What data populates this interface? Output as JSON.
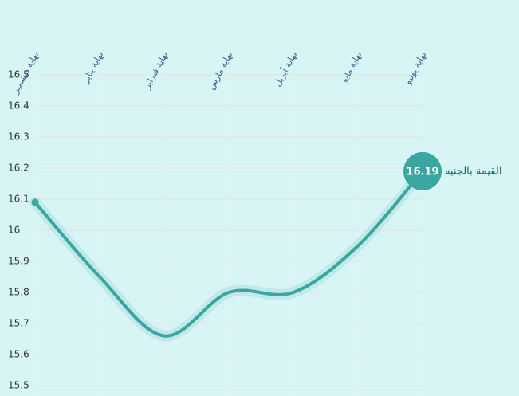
{
  "chart_data": {
    "type": "line",
    "categories": [
      "نهاية ديسمبر",
      "نهاية يناير",
      "نهاية فبراير",
      "نهاية مارس",
      "نهاية أبريل",
      "نهاية مايو",
      "نهاية يونيو"
    ],
    "series": [
      {
        "name": "القيمة بالجنيه",
        "color": "#3aa6a0",
        "values": [
          16.09,
          15.85,
          15.66,
          15.8,
          15.8,
          15.95,
          16.19
        ]
      }
    ],
    "ylim": [
      15.5,
      16.5
    ],
    "yticks": [
      15.5,
      15.6,
      15.7,
      15.8,
      15.9,
      16,
      16.1,
      16.2,
      16.3,
      16.4,
      16.5
    ],
    "grid": true
  }
}
